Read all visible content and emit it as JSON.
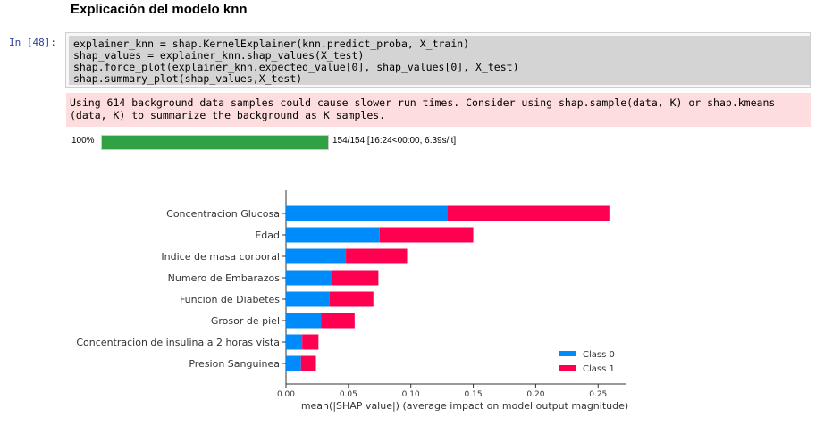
{
  "notebook": {
    "heading": "Explicación del modelo knn",
    "prompt": "In [48]:",
    "code_lines": [
      "explainer_knn = shap.KernelExplainer(knn.predict_proba, X_train)",
      "shap_values = explainer_knn.shap_values(X_test)",
      "shap.force_plot(explainer_knn.expected_value[0], shap_values[0], X_test)",
      "shap.summary_plot(shap_values,X_test)"
    ],
    "stderr_lines": [
      "Using 614 background data samples could cause slower run times. Consider using shap.sample(data, K) or shap.kmeans",
      "(data, K) to summarize the background as K samples."
    ],
    "progress": {
      "percent_label": "100%",
      "fraction": 1.0,
      "status": "154/154 [16:24<00:00, 6.39s/it]",
      "color": "#30a244"
    }
  },
  "chart_data": {
    "type": "bar",
    "orientation": "horizontal",
    "stacked": true,
    "categories": [
      "Concentracion Glucosa",
      "Edad",
      "Indice de masa corporal",
      "Numero de Embarazos",
      "Funcion de Diabetes",
      "Grosor de piel",
      "Concentracion de insulina a 2 horas vista",
      "Presion Sanguinea"
    ],
    "series": [
      {
        "name": "Class 0",
        "color": "#008bfb",
        "values": [
          0.129,
          0.075,
          0.048,
          0.037,
          0.035,
          0.028,
          0.013,
          0.012
        ]
      },
      {
        "name": "Class 1",
        "color": "#ff0051",
        "values": [
          0.13,
          0.075,
          0.049,
          0.037,
          0.035,
          0.027,
          0.013,
          0.012
        ]
      }
    ],
    "xticks": [
      "0.00",
      "0.05",
      "0.10",
      "0.15",
      "0.20",
      "0.25"
    ],
    "xtick_values": [
      0,
      0.05,
      0.1,
      0.15,
      0.2,
      0.25
    ],
    "xlim": [
      0,
      0.272
    ],
    "xlabel": "mean(|SHAP value|) (average impact on model output magnitude)",
    "legend_position": "lower-right",
    "grid": false
  }
}
